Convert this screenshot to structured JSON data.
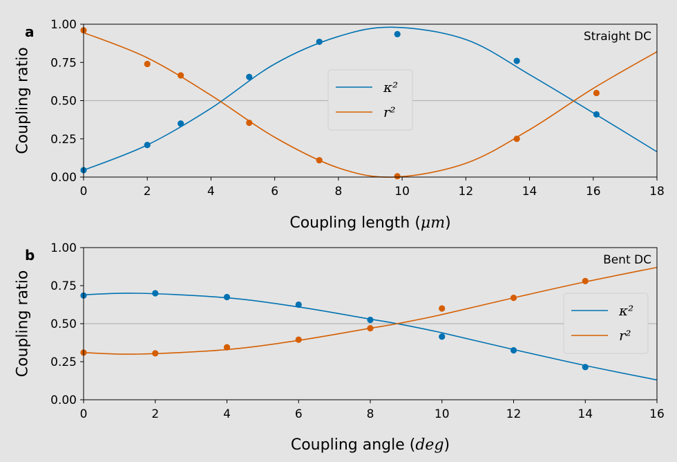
{
  "chart_data": [
    {
      "type": "line",
      "panel_label": "a",
      "annotation": "Straight DC",
      "xlabel_text": "Coupling length ",
      "xlabel_unit": "μm",
      "ylabel": "Coupling ratio",
      "xlim": [
        0,
        18
      ],
      "ylim": [
        0,
        1
      ],
      "xticks": [
        "0",
        "2",
        "4",
        "6",
        "8",
        "10",
        "12",
        "14",
        "16",
        "18"
      ],
      "yticks": [
        "0.00",
        "0.25",
        "0.50",
        "0.75",
        "1.00"
      ],
      "reference_line_y": 0.5,
      "legend_position": "center",
      "series": [
        {
          "name": "κ²",
          "color": "#0072b2",
          "points": {
            "x": [
              0,
              2,
              3.05,
              5.2,
              7.4,
              9.85,
              13.6,
              16.1
            ],
            "y": [
              0.045,
              0.21,
              0.35,
              0.655,
              0.885,
              0.935,
              0.76,
              0.41
            ]
          },
          "fit": {
            "x": [
              0,
              2,
              4,
              6,
              8,
              9.75,
              12,
              14,
              16,
              18
            ],
            "y": [
              0.045,
              0.21,
              0.45,
              0.74,
              0.92,
              0.98,
              0.9,
              0.67,
              0.42,
              0.165
            ]
          }
        },
        {
          "name": "r²",
          "color": "#d55e00",
          "points": {
            "x": [
              0,
              2,
              3.05,
              5.2,
              7.4,
              9.85,
              13.6,
              16.1
            ],
            "y": [
              0.96,
              0.74,
              0.665,
              0.355,
              0.11,
              0.005,
              0.25,
              0.55
            ]
          },
          "fit": {
            "x": [
              0,
              2,
              4,
              6,
              8,
              9.75,
              12,
              14,
              16,
              18
            ],
            "y": [
              0.945,
              0.78,
              0.535,
              0.26,
              0.06,
              0.0,
              0.09,
              0.31,
              0.58,
              0.82
            ]
          }
        }
      ]
    },
    {
      "type": "line",
      "panel_label": "b",
      "annotation": "Bent DC",
      "xlabel_text": "Coupling angle ",
      "xlabel_unit": "deg",
      "ylabel": "Coupling ratio",
      "xlim": [
        0,
        16
      ],
      "ylim": [
        0,
        1
      ],
      "xticks": [
        "0",
        "2",
        "4",
        "6",
        "8",
        "10",
        "12",
        "14",
        "16"
      ],
      "yticks": [
        "0.00",
        "0.25",
        "0.50",
        "0.75",
        "1.00"
      ],
      "reference_line_y": 0.5,
      "legend_position": "center-right",
      "series": [
        {
          "name": "κ²",
          "color": "#0072b2",
          "points": {
            "x": [
              0,
              2,
              4,
              6,
              8,
              10,
              12,
              14
            ],
            "y": [
              0.685,
              0.7,
              0.675,
              0.625,
              0.525,
              0.415,
              0.325,
              0.215
            ]
          },
          "fit": {
            "x": [
              0,
              1.5,
              4,
              6,
              8,
              8.75,
              10,
              12,
              14,
              16
            ],
            "y": [
              0.69,
              0.7,
              0.67,
              0.61,
              0.53,
              0.5,
              0.44,
              0.33,
              0.225,
              0.13
            ]
          }
        },
        {
          "name": "r²",
          "color": "#d55e00",
          "points": {
            "x": [
              0,
              2,
              4,
              6,
              8,
              10,
              12,
              14
            ],
            "y": [
              0.31,
              0.305,
              0.345,
              0.395,
              0.47,
              0.6,
              0.67,
              0.78
            ]
          },
          "fit": {
            "x": [
              0,
              1.5,
              4,
              6,
              8,
              8.75,
              10,
              12,
              14,
              16
            ],
            "y": [
              0.31,
              0.3,
              0.33,
              0.39,
              0.47,
              0.5,
              0.56,
              0.67,
              0.775,
              0.87
            ]
          }
        }
      ]
    }
  ]
}
